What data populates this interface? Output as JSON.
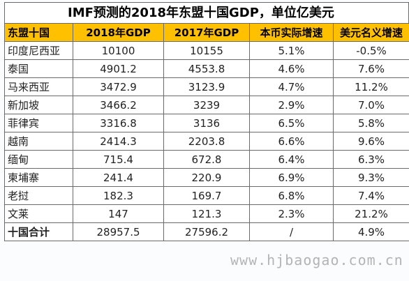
{
  "title": "IMF预测的2018年东盟十国GDP，单位亿美元",
  "headers": [
    "东盟十国",
    "2018年GDP",
    "2017年GDP",
    "本币实际增速",
    "美元名义增速"
  ],
  "rows": [
    [
      "印度尼西亚",
      "10100",
      "10155",
      "5.1%",
      "-0.5%"
    ],
    [
      "泰国",
      "4901.2",
      "4553.8",
      "4.6%",
      "7.6%"
    ],
    [
      "马来西亚",
      "3472.9",
      "3123.9",
      "4.7%",
      "11.2%"
    ],
    [
      "新加坡",
      "3466.2",
      "3239",
      "2.9%",
      "7.0%"
    ],
    [
      "菲律宾",
      "3316.8",
      "3136",
      "6.5%",
      "5.8%"
    ],
    [
      "越南",
      "2414.3",
      "2203.8",
      "6.6%",
      "9.6%"
    ],
    [
      "缅甸",
      "715.4",
      "672.8",
      "6.4%",
      "6.3%"
    ],
    [
      "柬埔寨",
      "241.4",
      "220.9",
      "6.9%",
      "9.3%"
    ],
    [
      "老挝",
      "182.3",
      "169.7",
      "6.8%",
      "7.4%"
    ],
    [
      "文莱",
      "147",
      "121.3",
      "2.3%",
      "21.2%"
    ]
  ],
  "total": [
    "十国合计",
    "28957.5",
    "27596.2",
    "/",
    "4.9%"
  ],
  "watermark": "www.hjbaogao.com.cn",
  "colors": {
    "header_bg": "#ffc000",
    "grid": "#6a6a6a"
  }
}
